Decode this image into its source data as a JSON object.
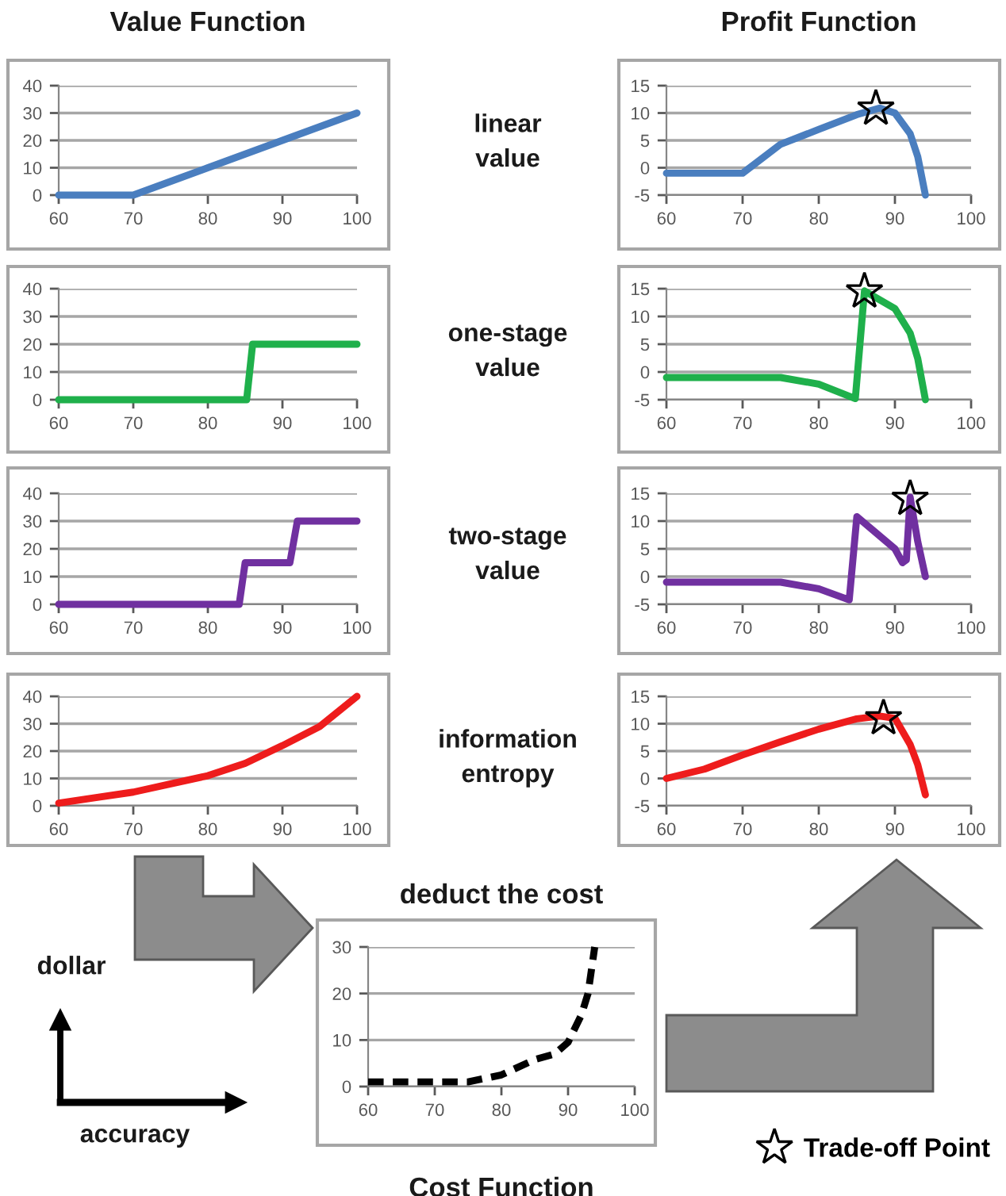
{
  "chart_data": [
    {
      "type": "line",
      "title": "Value Function",
      "xlim": [
        60,
        100
      ],
      "ylim": [
        0,
        40
      ],
      "xticks": [
        60,
        70,
        80,
        90,
        100
      ],
      "yticks": [
        0,
        10,
        20,
        30,
        40
      ],
      "grid": "y",
      "line_style": "solid",
      "x": [
        60,
        70,
        75,
        80,
        85,
        90,
        95,
        100
      ],
      "series": [
        {
          "color": "#4a7ebf",
          "values": [
            0,
            0,
            5,
            10,
            15,
            20,
            25,
            30
          ]
        }
      ]
    },
    {
      "type": "line",
      "xlim": [
        60,
        100
      ],
      "ylim": [
        0,
        40
      ],
      "xticks": [
        60,
        70,
        80,
        90,
        100
      ],
      "yticks": [
        0,
        10,
        20,
        30,
        40
      ],
      "grid": "y",
      "line_style": "solid",
      "x": [
        60,
        85.2,
        86,
        100
      ],
      "series": [
        {
          "color": "#1fb04b",
          "values": [
            0,
            0,
            20,
            20
          ]
        }
      ]
    },
    {
      "type": "line",
      "xlim": [
        60,
        100
      ],
      "ylim": [
        0,
        40
      ],
      "xticks": [
        60,
        70,
        80,
        90,
        100
      ],
      "yticks": [
        0,
        10,
        20,
        30,
        40
      ],
      "grid": "y",
      "line_style": "solid",
      "x": [
        60,
        84.2,
        85,
        91,
        92,
        100
      ],
      "series": [
        {
          "color": "#7030a0",
          "values": [
            0,
            0,
            15,
            15,
            30,
            30
          ]
        }
      ]
    },
    {
      "type": "line",
      "xlim": [
        60,
        100
      ],
      "ylim": [
        0,
        40
      ],
      "xticks": [
        60,
        70,
        80,
        90,
        100
      ],
      "yticks": [
        0,
        10,
        20,
        30,
        40
      ],
      "grid": "y",
      "line_style": "solid",
      "x": [
        60,
        65,
        70,
        75,
        80,
        85,
        90,
        95,
        100
      ],
      "series": [
        {
          "color": "#ee1c1c",
          "values": [
            1,
            3,
            5,
            8,
            11,
            15.5,
            22,
            29,
            40
          ]
        }
      ]
    },
    {
      "type": "line",
      "title": "Profit Function",
      "xlim": [
        60,
        100
      ],
      "ylim": [
        -5,
        15
      ],
      "xticks": [
        60,
        70,
        80,
        90,
        100
      ],
      "yticks": [
        -5,
        0,
        5,
        10,
        15
      ],
      "grid": "y",
      "line_style": "solid",
      "series": [
        {
          "color": "#4a7ebf",
          "x": [
            60,
            70,
            75,
            80,
            85,
            88,
            90,
            92,
            93,
            94
          ],
          "values": [
            -1,
            -1,
            4.3,
            7,
            9.7,
            10.9,
            10,
            6.2,
            2,
            -5
          ]
        },
        {
          "type": "scatter",
          "marker": "star",
          "color": "#000000",
          "x": [
            87.5
          ],
          "values": [
            10.8
          ]
        }
      ]
    },
    {
      "type": "line",
      "xlim": [
        60,
        100
      ],
      "ylim": [
        -5,
        15
      ],
      "xticks": [
        60,
        70,
        80,
        90,
        100
      ],
      "yticks": [
        -5,
        0,
        5,
        10,
        15
      ],
      "grid": "y",
      "line_style": "solid",
      "series": [
        {
          "color": "#1fb04b",
          "x": [
            60,
            75,
            80,
            84.8,
            86,
            90,
            92,
            93,
            94
          ],
          "values": [
            -1,
            -1,
            -2.2,
            -4.8,
            14.6,
            11.4,
            7,
            2.4,
            -5
          ]
        },
        {
          "type": "scatter",
          "marker": "star",
          "color": "#000000",
          "x": [
            86
          ],
          "values": [
            14.5
          ]
        }
      ]
    },
    {
      "type": "line",
      "xlim": [
        60,
        100
      ],
      "ylim": [
        -5,
        15
      ],
      "xticks": [
        60,
        70,
        80,
        90,
        100
      ],
      "yticks": [
        -5,
        0,
        5,
        10,
        15
      ],
      "grid": "y",
      "line_style": "solid",
      "series": [
        {
          "color": "#7030a0",
          "x": [
            60,
            75,
            80,
            84,
            85,
            90,
            91,
            91.5,
            92,
            93,
            94
          ],
          "values": [
            -1,
            -1,
            -2.2,
            -4.2,
            10.8,
            5,
            2.5,
            3,
            14.3,
            6.3,
            0
          ]
        },
        {
          "type": "scatter",
          "marker": "star",
          "color": "#000000",
          "x": [
            92
          ],
          "values": [
            14
          ]
        }
      ]
    },
    {
      "type": "line",
      "xlim": [
        60,
        100
      ],
      "ylim": [
        -5,
        15
      ],
      "xticks": [
        60,
        70,
        80,
        90,
        100
      ],
      "yticks": [
        -5,
        0,
        5,
        10,
        15
      ],
      "grid": "y",
      "line_style": "solid",
      "legend": "bottom right",
      "series": [
        {
          "color": "#ee1c1c",
          "x": [
            60,
            65,
            70,
            75,
            80,
            85,
            88,
            90,
            92,
            93,
            94
          ],
          "values": [
            0,
            1.7,
            4.3,
            6.7,
            9,
            10.9,
            11.4,
            11,
            6.2,
            2.5,
            -3
          ]
        },
        {
          "type": "scatter",
          "name": "Trade-off Point",
          "marker": "star",
          "color": "#000000",
          "x": [
            88.5
          ],
          "values": [
            11
          ]
        }
      ]
    },
    {
      "type": "line",
      "title": "deduct the cost",
      "xlabel": "Cost Function",
      "xlim": [
        60,
        100
      ],
      "ylim": [
        0,
        30
      ],
      "xticks": [
        60,
        70,
        80,
        90,
        100
      ],
      "yticks": [
        0,
        10,
        20,
        30
      ],
      "grid": "y",
      "line_style": "dashed",
      "x": [
        60,
        65,
        70,
        75,
        80,
        85,
        88,
        90,
        92,
        93,
        94
      ],
      "series": [
        {
          "color": "#000000",
          "values": [
            1,
            1,
            1,
            1,
            2.5,
            5.8,
            7,
            9.5,
            15.4,
            20,
            30
          ]
        }
      ]
    },
    {
      "type": "other",
      "annotations": [
        "linear\nvalue",
        "one-stage\nvalue",
        "two-stage\nvalue",
        "information\nentropy",
        "dollar",
        "accuracy"
      ]
    }
  ]
}
